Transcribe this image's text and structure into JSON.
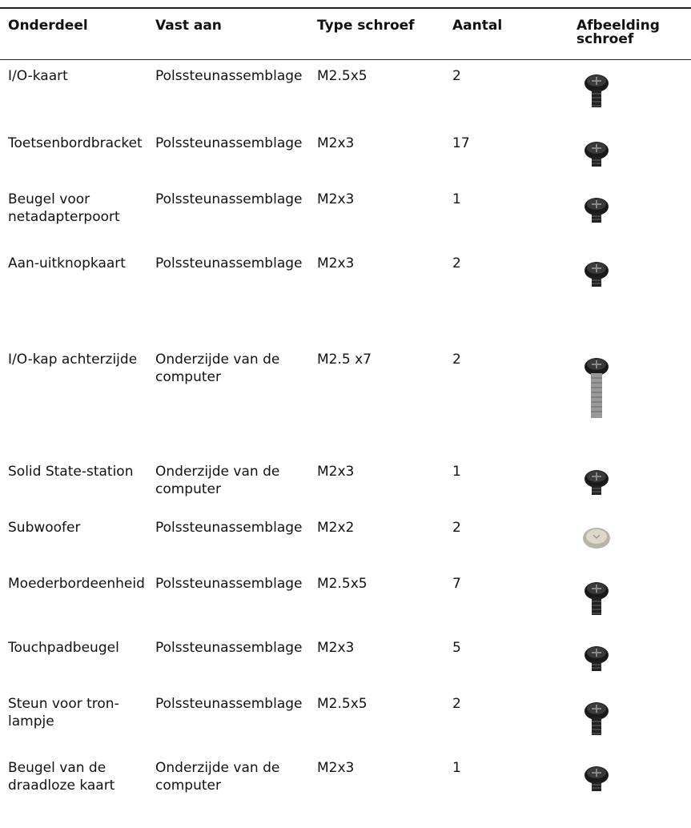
{
  "table": {
    "headers": [
      "Onderdeel",
      "Vast aan",
      "Type schroef",
      "Aantal",
      "Afbeelding schroef"
    ],
    "rows": [
      [
        "I/O-kaart",
        "Polssteunassemblage",
        "M2.5x5",
        "2"
      ],
      [
        "Toetsenbordbracket",
        "Polssteunassemblage",
        "M2x3",
        "17"
      ],
      [
        "Beugel voor netadapterpoort",
        "Polssteunassemblage",
        "M2x3",
        "1"
      ],
      [
        "Aan-uitknopkaart",
        "Polssteunassemblage",
        "M2x3",
        "2"
      ],
      [
        "I/O-kap achterzijde",
        "Onderzijde van de computer",
        "M2.5 x7",
        "2"
      ],
      [
        "Solid State-station",
        "Onderzijde van de computer",
        "M2x3",
        "1"
      ],
      [
        "Subwoofer",
        "Polssteunassemblage",
        "M2x2",
        "2"
      ],
      [
        "Moederbordeenheid",
        "Polssteunassemblage",
        "M2.5x5",
        "7"
      ],
      [
        "Touchpadbeugel",
        "Polssteunassemblage",
        "M2x3",
        "5"
      ],
      [
        "Steun voor tron-lampje",
        "Polssteunassemblage",
        "M2.5x5",
        "2"
      ],
      [
        "Beugel van de draadloze kaart",
        "Onderzijde van de computer",
        "M2x3",
        "1"
      ]
    ]
  }
}
